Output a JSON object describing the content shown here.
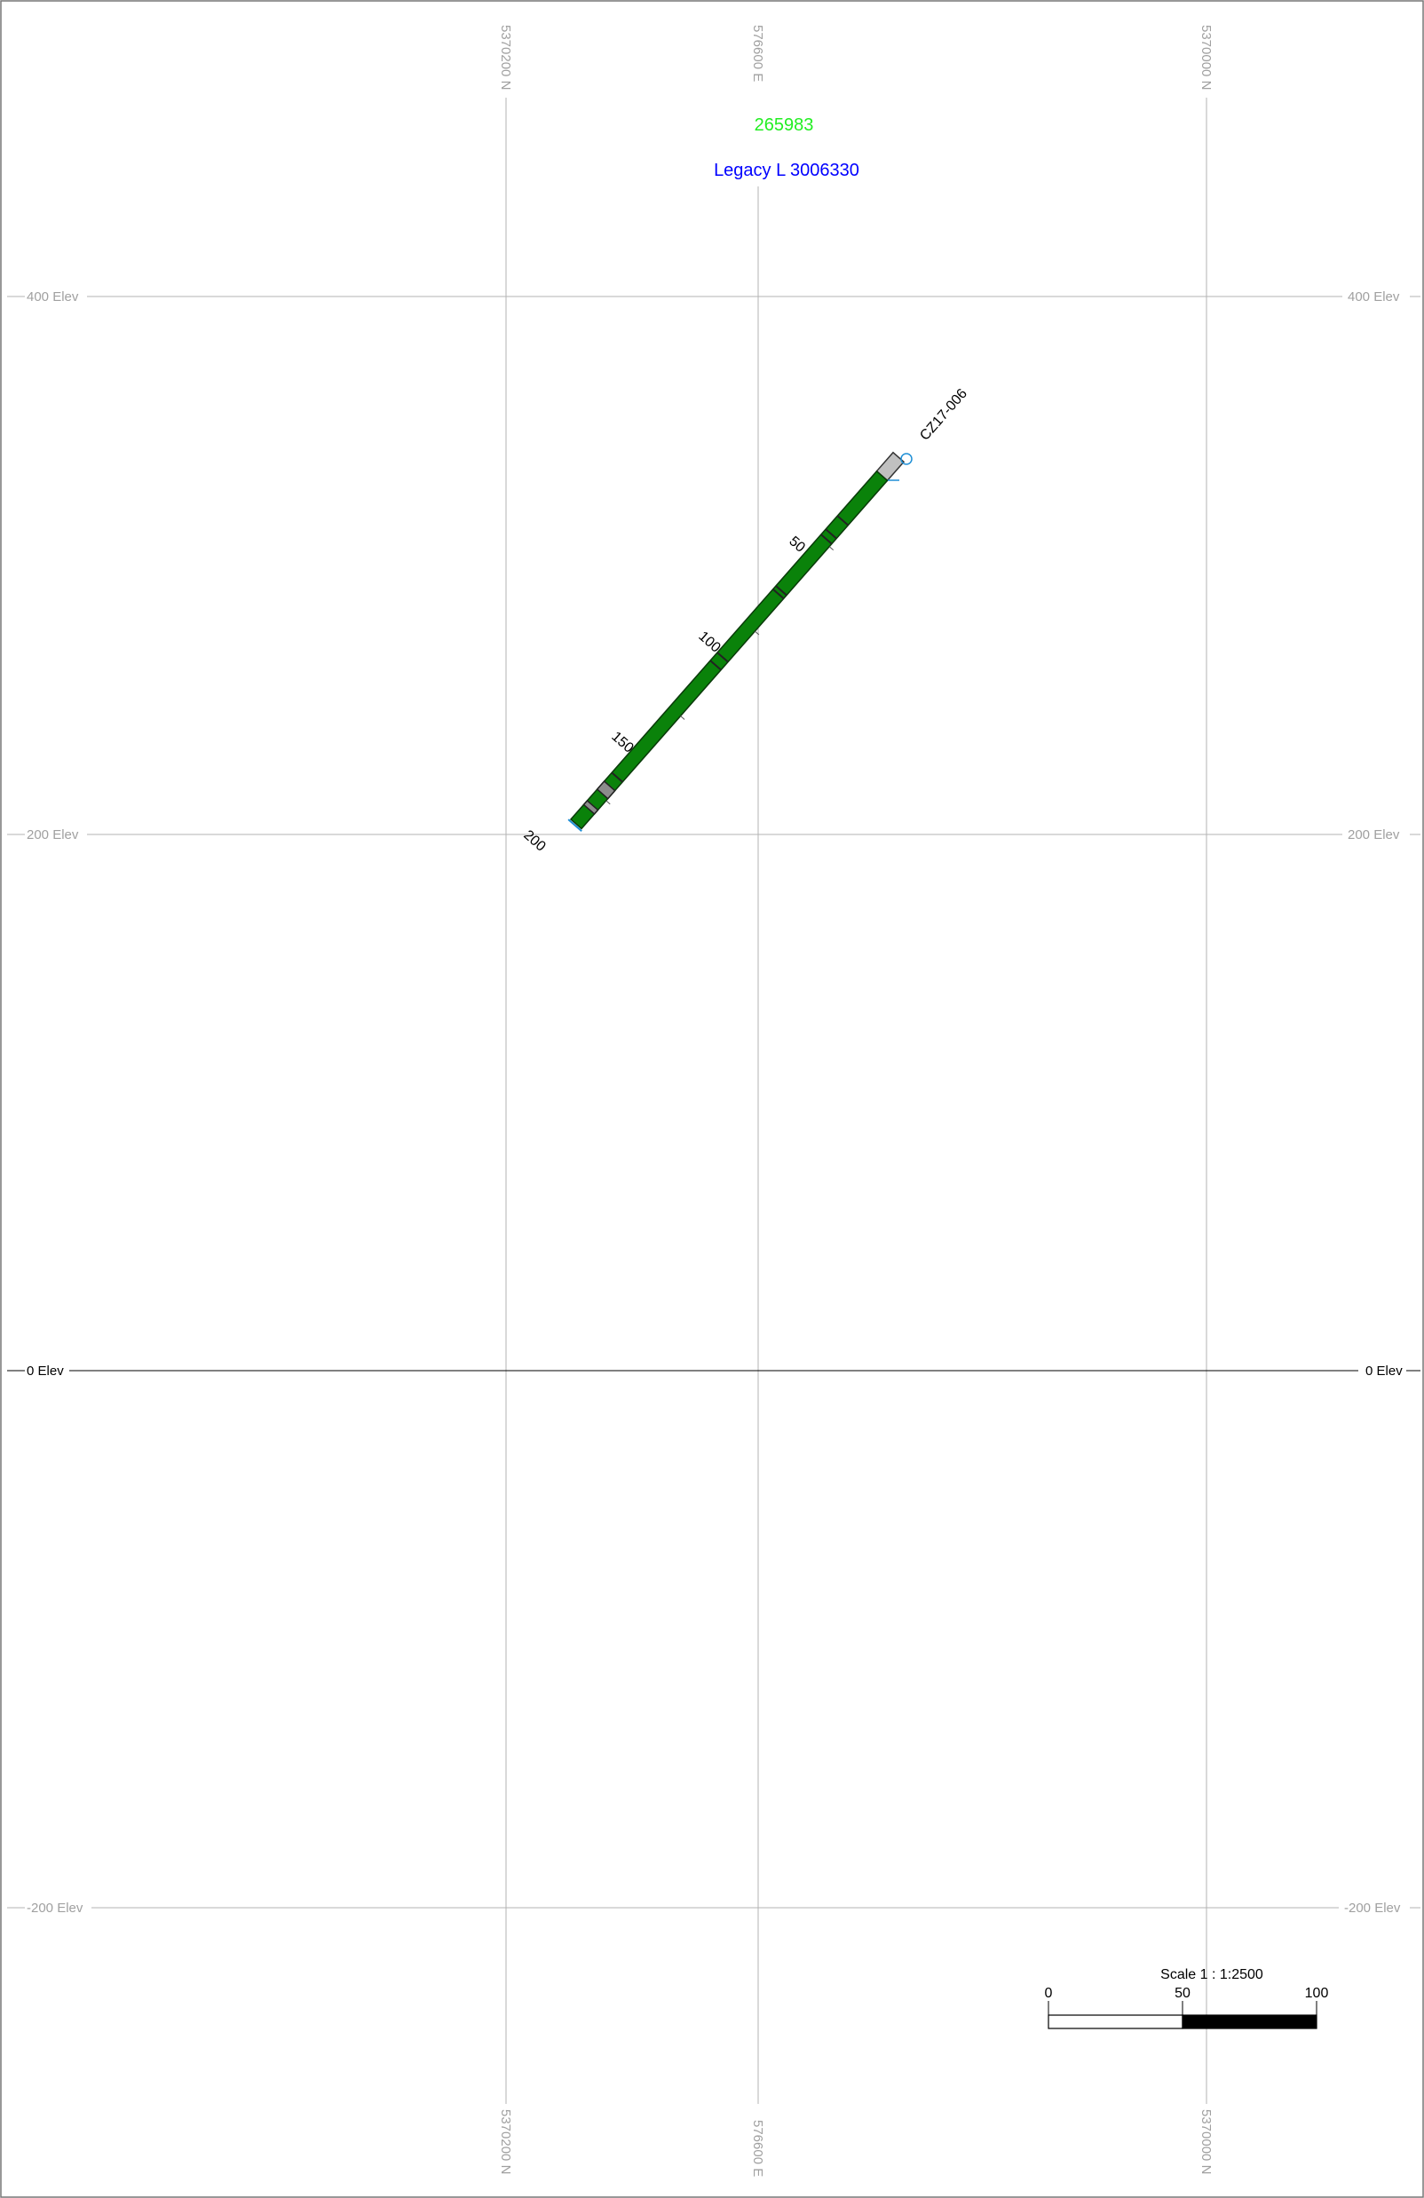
{
  "header": {
    "claim_number": "265983",
    "claim_color": "#22ee22",
    "legacy_label": "Legacy L 3006330",
    "legacy_color": "#0000ff"
  },
  "grid": {
    "northing_labels": [
      "5370200 N",
      "576600 E",
      "5370000 N"
    ],
    "elevation_labels": [
      "400 Elev",
      "200 Elev",
      "0 Elev",
      "-200 Elev"
    ],
    "grid_color": "#b3b3b3",
    "zero_line_color": "#000000"
  },
  "drillhole": {
    "name": "CZ17-006",
    "depth_labels": [
      "50",
      "100",
      "150",
      "200"
    ],
    "collar_color": "#1f8fd6",
    "lithology_color": "#0a820a",
    "casing_color": "#c0c0c0",
    "intercept_color": "#8c8c8c"
  },
  "scale_bar": {
    "title": "Scale 1 : 1:2500",
    "ticks": [
      "0",
      "50",
      "100"
    ]
  }
}
